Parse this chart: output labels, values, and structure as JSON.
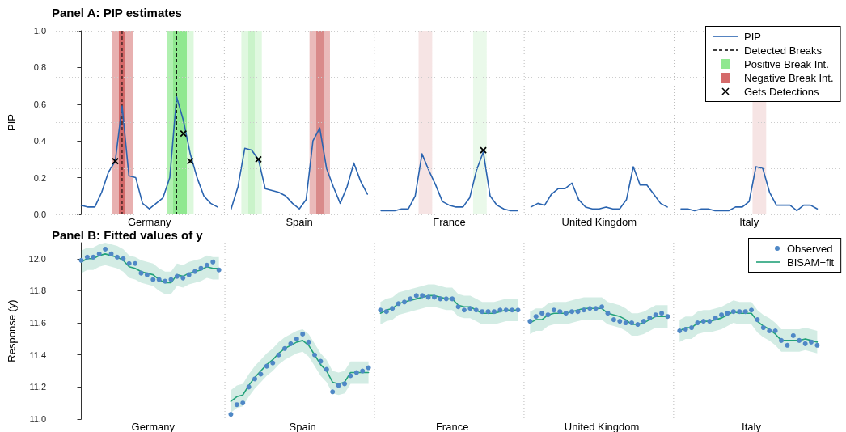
{
  "chart_data": [
    {
      "type": "line",
      "title": "Panel A: PIP estimates",
      "ylabel": "PIP",
      "legend": "top right",
      "categories": [
        null,
        null,
        null,
        null,
        null,
        null,
        null,
        null,
        null,
        null,
        "Germany",
        null,
        null,
        null,
        null,
        null,
        null,
        null,
        null,
        null,
        null,
        null,
        null,
        null,
        null,
        null,
        null,
        null,
        null,
        null,
        null,
        null,
        "Spain",
        null,
        null,
        null,
        null,
        null,
        null,
        null,
        null,
        null,
        null,
        null,
        null,
        null,
        null,
        null,
        null,
        null,
        null,
        null,
        null,
        null,
        "France",
        null,
        null,
        null,
        null,
        null,
        null,
        null,
        null,
        null,
        null,
        null,
        null,
        null,
        null,
        null,
        null,
        null,
        null,
        null,
        null,
        null,
        "United Kingdom",
        null,
        null,
        null,
        null,
        null,
        null,
        null,
        null,
        null,
        null,
        null,
        null,
        null,
        null,
        null,
        null,
        null,
        null,
        null,
        null,
        null,
        "Italy",
        null,
        null,
        null,
        null,
        null,
        null,
        null,
        null,
        null,
        null
      ],
      "ylim": [
        0,
        1
      ],
      "yticks": [
        {
          "value": 0,
          "label": "0.0"
        },
        {
          "value": 0.2,
          "label": "0.2"
        },
        {
          "value": 0.4,
          "label": "0.4"
        },
        {
          "value": 0.6,
          "label": "0.6"
        },
        {
          "value": 0.8,
          "label": "0.8"
        },
        {
          "value": 1,
          "label": "1.0"
        }
      ],
      "series": [
        {
          "name": "PIP",
          "color": "#2a64b0",
          "values": [
            0.05,
            0.04,
            0.04,
            0.12,
            0.23,
            0.29,
            0.59,
            0.21,
            0.2,
            0.06,
            0.03,
            0.06,
            0.09,
            0.2,
            0.64,
            0.51,
            0.33,
            0.2,
            0.1,
            0.06,
            0.04,
            null,
            0.03,
            0.15,
            0.36,
            0.35,
            0.3,
            0.14,
            0.13,
            0.12,
            0.1,
            0.06,
            0.03,
            0.08,
            0.4,
            0.47,
            0.25,
            0.15,
            0.06,
            0.15,
            0.28,
            0.18,
            0.11,
            null,
            0.02,
            0.02,
            0.02,
            0.03,
            0.03,
            0.1,
            0.33,
            0.24,
            0.16,
            0.07,
            0.05,
            0.04,
            0.04,
            0.09,
            0.24,
            0.34,
            0.1,
            0.05,
            0.03,
            0.02,
            0.02,
            null,
            0.04,
            0.06,
            0.05,
            0.11,
            0.14,
            0.14,
            0.17,
            0.08,
            0.04,
            0.03,
            0.03,
            0.04,
            0.03,
            0.03,
            0.08,
            0.26,
            0.16,
            0.16,
            0.11,
            0.06,
            0.04,
            null,
            0.03,
            0.03,
            0.02,
            0.03,
            0.03,
            0.02,
            0.02,
            0.02,
            0.04,
            0.04,
            0.07,
            0.26,
            0.25,
            0.12,
            0.05,
            0.05,
            0.05,
            0.02,
            0.05,
            0.05,
            0.03
          ]
        },
        {
          "name": "Gets Detections",
          "type": "scatter",
          "marker": "cross",
          "color": "#000000",
          "values": [
            null,
            null,
            null,
            null,
            null,
            0.29,
            null,
            null,
            null,
            null,
            null,
            null,
            null,
            null,
            null,
            0.44,
            0.29,
            null,
            null,
            null,
            null,
            null,
            null,
            null,
            null,
            null,
            0.3,
            null,
            null,
            null,
            null,
            null,
            null,
            null,
            null,
            null,
            null,
            null,
            null,
            null,
            null,
            null,
            null,
            null,
            null,
            null,
            null,
            null,
            null,
            null,
            null,
            null,
            null,
            null,
            null,
            null,
            null,
            null,
            null,
            0.35,
            null,
            null,
            null,
            null,
            null,
            null,
            null,
            null,
            null,
            null,
            null,
            null,
            null,
            null,
            null,
            null,
            null,
            null,
            null,
            null,
            null,
            null,
            null,
            null,
            null,
            null,
            null,
            null,
            null,
            null,
            null,
            null,
            null,
            null,
            null,
            null,
            null,
            null,
            null,
            null,
            null,
            null,
            null,
            null,
            null,
            null,
            null,
            null,
            null
          ]
        }
      ],
      "ref_lines": [
        {
          "axis": "y",
          "value": 0,
          "color": "#cccccc",
          "line_style": "dotted"
        },
        {
          "axis": "y",
          "value": 0.25,
          "color": "#cccccc",
          "line_style": "dotted"
        },
        {
          "axis": "y",
          "value": 0.5,
          "color": "#cccccc",
          "line_style": "dotted"
        },
        {
          "axis": "y",
          "value": 0.75,
          "color": "#cccccc",
          "line_style": "dotted"
        },
        {
          "axis": "y",
          "value": 1,
          "color": "#cccccc",
          "line_style": "dotted"
        }
      ],
      "annotations": [
        "Detected Breaks",
        "Positive Break Int.",
        "Negative Break Int."
      ]
    },
    {
      "type": "line",
      "title": "Panel B: Fitted values of y",
      "ylabel": "Response (y)",
      "legend": "top right",
      "categories": [
        null,
        null,
        null,
        null,
        null,
        null,
        null,
        null,
        null,
        null,
        null,
        null,
        "Germany",
        null,
        null,
        null,
        null,
        null,
        null,
        null,
        null,
        null,
        null,
        null,
        null,
        null,
        null,
        null,
        null,
        null,
        null,
        null,
        null,
        null,
        null,
        null,
        null,
        "Spain",
        null,
        null,
        null,
        null,
        null,
        null,
        null,
        null,
        null,
        null,
        null,
        null,
        null,
        null,
        null,
        null,
        null,
        null,
        null,
        null,
        null,
        null,
        null,
        null,
        "France",
        null,
        null,
        null,
        null,
        null,
        null,
        null,
        null,
        null,
        null,
        null,
        null,
        null,
        null,
        null,
        null,
        null,
        null,
        null,
        null,
        null,
        null,
        null,
        null,
        "United Kingdom",
        null,
        null,
        null,
        null,
        null,
        null,
        null,
        null,
        null,
        null,
        null,
        null,
        null,
        null,
        null,
        null,
        null,
        null,
        null,
        null,
        null,
        null,
        null,
        null,
        "Italy",
        null,
        null,
        null,
        null,
        null,
        null,
        null,
        null,
        null,
        null,
        null
      ],
      "ylim": [
        11,
        12.1
      ],
      "yticks": [
        {
          "value": 11,
          "label": "11.0"
        },
        {
          "value": 11.2,
          "label": "11.2"
        },
        {
          "value": 11.4,
          "label": "11.4"
        },
        {
          "value": 11.6,
          "label": "11.6"
        },
        {
          "value": 11.8,
          "label": "11.8"
        },
        {
          "value": 12,
          "label": "12.0"
        }
      ],
      "series": [
        {
          "name": "Observed",
          "type": "scatter",
          "marker": "circle",
          "color": "#4f88c6",
          "values": [
            11.99,
            12.01,
            12.01,
            12.03,
            12.06,
            12.03,
            12.01,
            12.0,
            11.97,
            11.97,
            11.91,
            11.9,
            11.87,
            11.87,
            11.86,
            11.87,
            11.89,
            11.88,
            11.9,
            11.92,
            11.94,
            11.96,
            11.98,
            11.93,
            null,
            11.03,
            11.09,
            11.1,
            11.2,
            11.25,
            11.28,
            11.33,
            11.35,
            11.4,
            11.44,
            11.47,
            11.5,
            11.53,
            11.48,
            11.4,
            11.36,
            11.31,
            11.17,
            11.21,
            11.22,
            11.27,
            11.29,
            11.3,
            11.32,
            null,
            11.68,
            11.67,
            11.69,
            11.72,
            11.73,
            11.75,
            11.77,
            11.77,
            11.76,
            11.76,
            11.75,
            11.75,
            11.75,
            11.7,
            11.68,
            11.69,
            11.68,
            11.67,
            11.67,
            11.67,
            11.68,
            11.68,
            11.68,
            11.68,
            null,
            11.61,
            11.64,
            11.66,
            11.65,
            11.68,
            11.67,
            11.66,
            11.67,
            11.67,
            11.68,
            11.69,
            11.69,
            11.7,
            11.66,
            11.62,
            11.61,
            11.6,
            11.6,
            11.59,
            11.61,
            11.63,
            11.65,
            11.66,
            11.64,
            null,
            11.55,
            11.56,
            11.57,
            11.6,
            11.61,
            11.61,
            11.63,
            11.65,
            11.66,
            11.67,
            11.67,
            11.67,
            11.68,
            11.62,
            11.57,
            11.55,
            11.55,
            11.49,
            11.46,
            11.52,
            11.49,
            11.47,
            11.48,
            11.46
          ]
        },
        {
          "name": "BISAM−fit",
          "color": "#23a27a",
          "values": [
            11.98,
            12.0,
            12.0,
            12.02,
            12.03,
            12.02,
            12.01,
            11.99,
            11.95,
            11.94,
            11.92,
            11.91,
            11.9,
            11.87,
            11.85,
            11.85,
            11.9,
            11.89,
            11.91,
            11.92,
            11.93,
            11.95,
            11.94,
            11.94,
            null,
            11.11,
            11.14,
            11.15,
            11.21,
            11.26,
            11.3,
            11.34,
            11.37,
            11.41,
            11.44,
            11.46,
            11.48,
            11.49,
            11.46,
            11.4,
            11.34,
            11.3,
            11.23,
            11.22,
            11.23,
            11.29,
            11.29,
            11.29,
            11.29,
            null,
            11.66,
            11.68,
            11.69,
            11.72,
            11.73,
            11.74,
            11.75,
            11.76,
            11.77,
            11.77,
            11.76,
            11.75,
            11.75,
            11.71,
            11.7,
            11.7,
            11.68,
            11.66,
            11.66,
            11.66,
            11.67,
            11.68,
            11.68,
            11.68,
            null,
            11.6,
            11.62,
            11.62,
            11.65,
            11.66,
            11.66,
            11.66,
            11.67,
            11.68,
            11.69,
            11.69,
            11.69,
            11.69,
            11.66,
            11.65,
            11.64,
            11.62,
            11.59,
            11.59,
            11.6,
            11.62,
            11.64,
            11.64,
            11.64,
            null,
            11.55,
            11.57,
            11.57,
            11.6,
            11.61,
            11.61,
            11.62,
            11.63,
            11.65,
            11.67,
            11.66,
            11.66,
            11.66,
            11.61,
            11.58,
            11.56,
            11.53,
            11.49,
            11.49,
            11.49,
            11.49,
            11.5,
            11.49,
            11.48
          ],
          "upper": [
            12.05,
            12.07,
            12.07,
            12.09,
            12.1,
            12.09,
            12.08,
            12.06,
            12.02,
            12.01,
            11.99,
            11.98,
            11.97,
            11.94,
            11.92,
            11.92,
            11.97,
            11.96,
            11.98,
            11.99,
            12.0,
            12.02,
            12.01,
            12.01,
            null,
            11.18,
            11.21,
            11.22,
            11.28,
            11.33,
            11.37,
            11.41,
            11.44,
            11.48,
            11.51,
            11.53,
            11.55,
            11.56,
            11.53,
            11.47,
            11.41,
            11.37,
            11.3,
            11.29,
            11.3,
            11.36,
            11.36,
            11.36,
            11.36,
            null,
            11.73,
            11.75,
            11.76,
            11.79,
            11.8,
            11.81,
            11.82,
            11.83,
            11.84,
            11.84,
            11.83,
            11.82,
            11.82,
            11.78,
            11.77,
            11.77,
            11.75,
            11.73,
            11.73,
            11.73,
            11.74,
            11.75,
            11.75,
            11.75,
            null,
            11.67,
            11.69,
            11.69,
            11.72,
            11.73,
            11.73,
            11.73,
            11.74,
            11.75,
            11.76,
            11.76,
            11.76,
            11.76,
            11.73,
            11.72,
            11.71,
            11.69,
            11.66,
            11.66,
            11.67,
            11.69,
            11.71,
            11.71,
            11.71,
            null,
            11.62,
            11.64,
            11.64,
            11.67,
            11.68,
            11.68,
            11.69,
            11.7,
            11.72,
            11.74,
            11.73,
            11.73,
            11.73,
            11.68,
            11.65,
            11.63,
            11.6,
            11.56,
            11.56,
            11.56,
            11.56,
            11.57,
            11.56,
            11.55
          ],
          "lower": [
            11.91,
            11.93,
            11.93,
            11.95,
            11.96,
            11.95,
            11.94,
            11.92,
            11.88,
            11.87,
            11.85,
            11.84,
            11.83,
            11.8,
            11.78,
            11.78,
            11.83,
            11.82,
            11.84,
            11.85,
            11.86,
            11.88,
            11.87,
            11.87,
            null,
            11.04,
            11.07,
            11.08,
            11.14,
            11.19,
            11.23,
            11.27,
            11.3,
            11.34,
            11.37,
            11.39,
            11.41,
            11.42,
            11.39,
            11.33,
            11.27,
            11.23,
            11.16,
            11.15,
            11.16,
            11.22,
            11.22,
            11.22,
            11.22,
            null,
            11.59,
            11.61,
            11.62,
            11.65,
            11.66,
            11.67,
            11.68,
            11.69,
            11.7,
            11.7,
            11.69,
            11.68,
            11.68,
            11.64,
            11.63,
            11.63,
            11.61,
            11.59,
            11.59,
            11.59,
            11.6,
            11.61,
            11.61,
            11.61,
            null,
            11.53,
            11.55,
            11.55,
            11.58,
            11.59,
            11.59,
            11.59,
            11.6,
            11.61,
            11.62,
            11.62,
            11.62,
            11.62,
            11.59,
            11.58,
            11.57,
            11.55,
            11.52,
            11.52,
            11.53,
            11.55,
            11.57,
            11.57,
            11.57,
            null,
            11.48,
            11.5,
            11.5,
            11.53,
            11.54,
            11.54,
            11.55,
            11.56,
            11.58,
            11.6,
            11.59,
            11.59,
            11.59,
            11.54,
            11.51,
            11.49,
            11.46,
            11.42,
            11.42,
            11.42,
            11.42,
            11.43,
            11.42,
            11.41
          ]
        }
      ]
    }
  ]
}
